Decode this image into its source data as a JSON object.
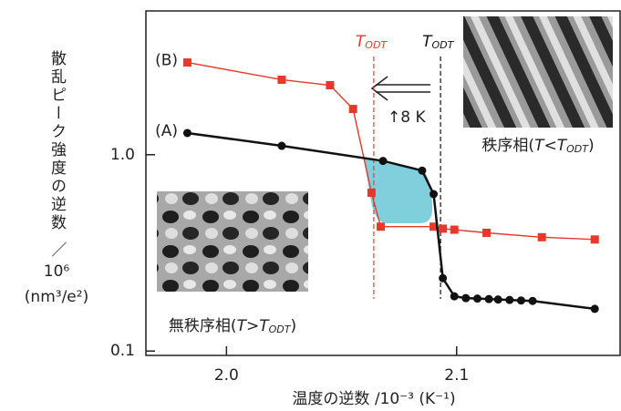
{
  "chart_data": {
    "type": "line",
    "y_label": [
      "散乱ピーク強度の逆数",
      "／",
      "10⁶",
      "(nm³/e²)"
    ],
    "x_label": "温度の逆数 /10⁻³ (K⁻¹)",
    "log_y": true,
    "xlim": [
      1.965,
      2.171
    ],
    "ylim": [
      0.095,
      5.4
    ],
    "xticks": [
      {
        "value": 2,
        "label": "2.0"
      },
      {
        "value": 2.1,
        "label": "2.1"
      }
    ],
    "yticks": [
      0.1,
      {
        "value": 1,
        "label": "1.0"
      }
    ],
    "series": [
      {
        "name": "(B)",
        "color": "#e8382b",
        "marker": "square",
        "x": [
          1.983,
          2.024,
          2.045,
          2.055,
          2.063,
          2.067,
          2.09,
          2.094,
          2.099,
          2.113,
          2.137,
          2.16
        ],
        "values": [
          2.95,
          2.41,
          2.26,
          1.71,
          0.64,
          0.43,
          0.43,
          0.42,
          0.415,
          0.4,
          0.38,
          0.37
        ]
      },
      {
        "name": "(A)",
        "color": "#111111",
        "marker": "circle",
        "x": [
          1.983,
          2.024,
          2.068,
          2.085,
          2.09,
          2.094,
          2.099,
          2.104,
          2.109,
          2.114,
          2.118,
          2.123,
          2.128,
          2.133,
          2.16
        ],
        "values": [
          1.29,
          1.11,
          0.93,
          0.83,
          0.63,
          0.235,
          0.19,
          0.186,
          0.185,
          0.184,
          0.183,
          0.182,
          0.181,
          0.18,
          0.164
        ]
      }
    ],
    "transitions": [
      {
        "text": "T",
        "sub": "ODT",
        "x": 2.064,
        "color": "#e8382b"
      },
      {
        "text": "T",
        "sub": "ODT",
        "x": 2.093,
        "color": "#111111"
      }
    ],
    "shift_label": "↑8 K",
    "ordered_caption": {
      "main": "秩序相(",
      "italic": "T<T",
      "sub": "ODT",
      "end": ")"
    },
    "disordered_caption": {
      "main": "無秩序相(",
      "italic": "T>T",
      "sub": "ODT",
      "end": ")"
    }
  }
}
